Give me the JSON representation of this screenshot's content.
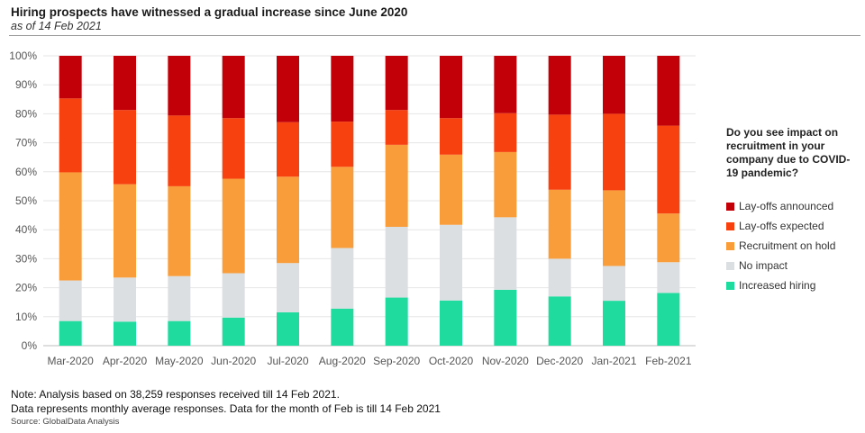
{
  "header": {
    "title": "Hiring prospects have witnessed a gradual increase since June 2020",
    "subtitle": "as of 14 Feb 2021"
  },
  "chart_data": {
    "type": "bar",
    "stacked": true,
    "categories": [
      "Mar-2020",
      "Apr-2020",
      "May-2020",
      "Jun-2020",
      "Jul-2020",
      "Aug-2020",
      "Sep-2020",
      "Oct-2020",
      "Nov-2020",
      "Dec-2020",
      "Jan-2021",
      "Feb-2021"
    ],
    "y_ticks": [
      "0%",
      "10%",
      "20%",
      "30%",
      "40%",
      "50%",
      "60%",
      "70%",
      "80%",
      "90%",
      "100%"
    ],
    "ylim": [
      0,
      100
    ],
    "grid": true,
    "legend_position": "right",
    "series": [
      {
        "name": "Increased hiring",
        "color": "#1fdb9e",
        "values": [
          8.5,
          8.3,
          8.5,
          9.7,
          11.5,
          12.8,
          16.6,
          15.6,
          19.3,
          17.0,
          15.5,
          18.2
        ]
      },
      {
        "name": "No impact",
        "color": "#dcdfe1",
        "values": [
          14.0,
          15.2,
          15.5,
          15.3,
          17.0,
          20.9,
          24.4,
          26.1,
          25.0,
          13.0,
          12.0,
          10.6
        ]
      },
      {
        "name": "Recruitment on hold",
        "color": "#f99d3b",
        "values": [
          37.3,
          32.2,
          31.0,
          32.6,
          29.8,
          28.0,
          28.3,
          24.2,
          22.5,
          23.8,
          26.1,
          16.8
        ]
      },
      {
        "name": "Lay-offs expected",
        "color": "#f7410f",
        "values": [
          25.5,
          25.6,
          24.4,
          20.9,
          18.8,
          15.6,
          12.0,
          12.6,
          13.4,
          25.9,
          26.4,
          30.3
        ]
      },
      {
        "name": "Lay-offs announced",
        "color": "#c10007",
        "values": [
          14.7,
          18.7,
          20.6,
          21.5,
          22.9,
          22.7,
          18.7,
          21.5,
          19.8,
          20.3,
          20.0,
          24.1
        ]
      }
    ],
    "legend_title": "Do you see impact on recruitment in your company due to COVID-19 pandemic?",
    "legend_order": [
      "Lay-offs announced",
      "Lay-offs expected",
      "Recruitment on hold",
      "No impact",
      "Increased hiring"
    ]
  },
  "notes": {
    "line1": "Note: Analysis based on 38,259 responses received till 14 Feb 2021.",
    "line2": "Data represents monthly average responses. Data for the month of Feb is till 14 Feb 2021",
    "source": "Source: GlobalData Analysis"
  }
}
